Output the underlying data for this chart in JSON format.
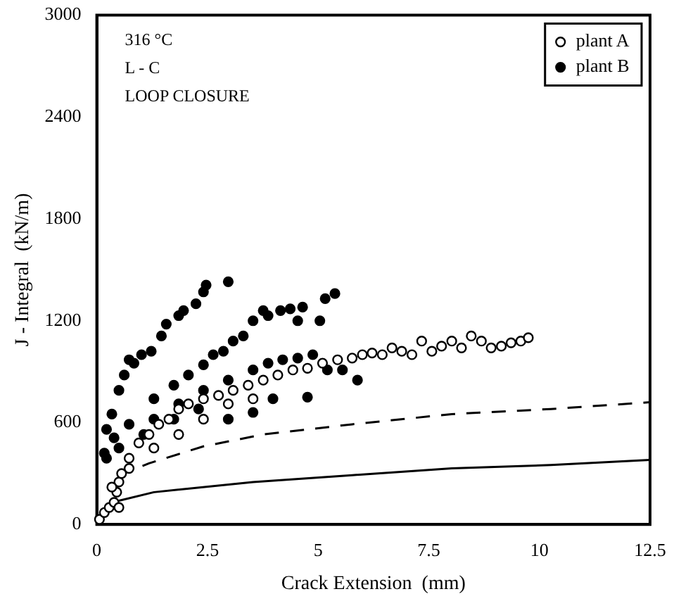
{
  "chart_data": {
    "type": "scatter",
    "xlabel": "Crack Extension  (mm)",
    "ylabel": "J - Integral  (kN/m)",
    "annotations": [
      "316 °C",
      "L - C",
      "LOOP CLOSURE"
    ],
    "xlim": [
      0,
      12.5
    ],
    "xticks": [
      0,
      2.5,
      5,
      {
        "value": 7.5,
        "label": "7.5"
      },
      10,
      12.5
    ],
    "ylim": [
      0,
      3000
    ],
    "yticks": [
      0,
      600,
      1200,
      1800,
      2400,
      3000
    ],
    "grid": false,
    "legend": "top right",
    "marker": "circle",
    "series": [
      {
        "name": "plant A",
        "color": "#ffffff",
        "x": [
          0.06,
          0.17,
          0.28,
          0.39,
          0.45,
          0.5,
          0.56,
          0.73,
          0.95,
          1.18,
          1.4,
          1.63,
          1.85,
          2.07,
          2.41,
          2.75,
          3.08,
          3.42,
          3.76,
          4.09,
          4.43,
          4.76,
          5.1,
          5.44,
          5.77,
          6.0,
          6.22,
          6.45,
          6.67,
          6.89,
          7.12,
          7.34,
          7.57,
          7.79,
          8.02,
          8.24,
          8.46,
          8.69,
          8.91,
          9.14,
          9.36,
          9.58,
          9.75,
          0.73,
          1.29,
          1.85,
          2.41,
          2.97,
          3.53,
          0.5,
          0.34
        ],
        "values": [
          30,
          70,
          100,
          130,
          190,
          250,
          300,
          390,
          480,
          530,
          590,
          620,
          680,
          710,
          740,
          760,
          790,
          820,
          850,
          880,
          910,
          920,
          950,
          970,
          980,
          1000,
          1010,
          1000,
          1040,
          1020,
          1000,
          1080,
          1020,
          1050,
          1080,
          1040,
          1110,
          1080,
          1040,
          1050,
          1070,
          1080,
          1100,
          330,
          450,
          530,
          620,
          710,
          740,
          100,
          220
        ]
      },
      {
        "name": "plant B",
        "color": "#000000",
        "x": [
          0.17,
          0.22,
          0.34,
          0.5,
          0.62,
          0.73,
          0.84,
          1.01,
          1.23,
          1.46,
          1.57,
          1.85,
          1.96,
          2.24,
          2.41,
          2.47,
          2.97,
          0.39,
          0.73,
          1.29,
          1.74,
          2.07,
          2.41,
          2.63,
          2.86,
          3.08,
          3.31,
          3.53,
          3.76,
          3.87,
          4.15,
          4.37,
          4.65,
          5.04,
          5.16,
          5.38,
          4.54,
          1.29,
          1.85,
          2.41,
          2.97,
          3.53,
          3.87,
          4.2,
          4.54,
          4.88,
          5.21,
          5.55,
          5.89,
          4.76,
          3.98,
          3.53,
          2.97,
          2.3,
          1.74,
          1.06,
          0.5,
          0.22
        ],
        "values": [
          420,
          560,
          650,
          790,
          880,
          970,
          950,
          1000,
          1020,
          1110,
          1180,
          1230,
          1260,
          1300,
          1370,
          1410,
          1430,
          510,
          590,
          740,
          820,
          880,
          940,
          1000,
          1020,
          1080,
          1110,
          1200,
          1260,
          1230,
          1260,
          1270,
          1280,
          1200,
          1330,
          1360,
          1200,
          620,
          710,
          790,
          850,
          910,
          950,
          970,
          980,
          1000,
          910,
          910,
          850,
          750,
          740,
          660,
          620,
          680,
          620,
          530,
          450,
          390
        ]
      },
      {
        "type": "line",
        "line_style": "dashed",
        "marker": "none",
        "color": "#000000",
        "x": [
          0.5,
          1.18,
          2.41,
          3.76,
          5.77,
          8.02,
          10.26,
          12.5
        ],
        "values": [
          290,
          360,
          460,
          530,
          590,
          650,
          680,
          720
        ]
      },
      {
        "type": "line",
        "line_style": "solid",
        "marker": "none",
        "color": "#000000",
        "x": [
          0.5,
          1.29,
          3.53,
          5.77,
          8.02,
          10.26,
          12.5
        ],
        "values": [
          140,
          190,
          250,
          290,
          330,
          350,
          380
        ]
      }
    ]
  }
}
